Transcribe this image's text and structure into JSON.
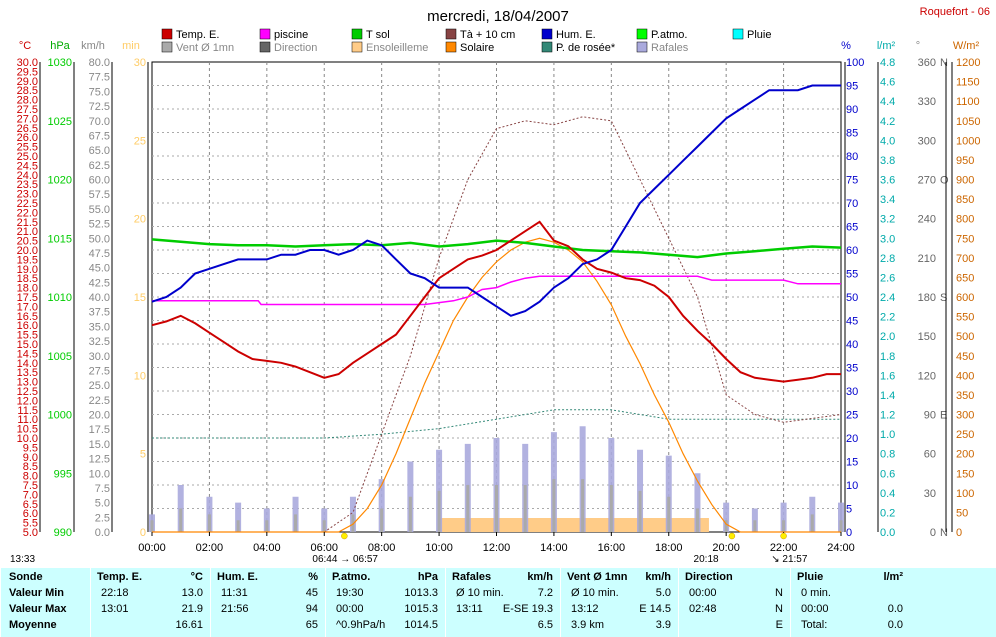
{
  "title": "mercredi, 18/04/2007",
  "station": "Roquefort - 06",
  "legend": [
    {
      "label": "Temp. E.",
      "color": "#cc0000"
    },
    {
      "label": "piscine",
      "color": "#ff00ff"
    },
    {
      "label": "T sol",
      "color": "#00cc00"
    },
    {
      "label": "Tà + 10 cm",
      "color": "#884444"
    },
    {
      "label": "Hum. E.",
      "color": "#0000cc"
    },
    {
      "label": "P.atmo.",
      "color": "#00ff00"
    },
    {
      "label": "Pluie",
      "color": "#00ffff"
    },
    {
      "label": "Vent Ø 1mn",
      "color": "#aaaaaa"
    },
    {
      "label": "Direction",
      "color": "#666666"
    },
    {
      "label": "Ensoleilleme",
      "color": "#ffcc88"
    },
    {
      "label": "Solaire",
      "color": "#ff8800"
    },
    {
      "label": "P. de rosée*",
      "color": "#338877"
    },
    {
      "label": "Rafales",
      "color": "#aaaadd"
    }
  ],
  "units": {
    "temp": "°C",
    "press": "hPa",
    "wind": "km/h",
    "min": "min",
    "hum": "%",
    "rain": "l/m²",
    "dir": "°",
    "solar": "W/m²"
  },
  "chart_data": {
    "type": "line",
    "x_ticks": [
      "00:00",
      "02:00",
      "04:00",
      "06:00",
      "08:00",
      "10:00",
      "12:00",
      "14:00",
      "16:00",
      "18:00",
      "20:00",
      "22:00",
      "24:00"
    ],
    "axes": {
      "temp": {
        "min": 5.0,
        "max": 30.0,
        "step": 0.5,
        "labels": [
          "5.0",
          "5.5",
          "6.0",
          "6.5",
          "7.0",
          "7.5",
          "8.0",
          "8.5",
          "9.0",
          "9.5",
          "10.0",
          "10.5",
          "11.0",
          "11.5",
          "12.0",
          "12.5",
          "13.0",
          "13.5",
          "14.0",
          "14.5",
          "15.0",
          "15.5",
          "16.0",
          "16.5",
          "17.0",
          "17.5",
          "18.0",
          "18.5",
          "19.0",
          "19.5",
          "20.0",
          "20.5",
          "21.0",
          "21.5",
          "22.0",
          "22.5",
          "23.0",
          "23.5",
          "24.0",
          "24.5",
          "25.0",
          "25.5",
          "26.0",
          "26.5",
          "27.0",
          "27.5",
          "28.0",
          "28.5",
          "29.0",
          "29.5",
          "30.0"
        ]
      },
      "press": {
        "labels": [
          "990",
          "995",
          "1000",
          "1005",
          "1010",
          "1015",
          "1020",
          "1025",
          "1030"
        ]
      },
      "wind": {
        "labels": [
          "0.0",
          "2.5",
          "5.0",
          "7.5",
          "10.0",
          "12.5",
          "15.0",
          "17.5",
          "20.0",
          "22.5",
          "25.0",
          "27.5",
          "30.0",
          "32.5",
          "35.0",
          "37.5",
          "40.0",
          "42.5",
          "45.0",
          "47.5",
          "50.0",
          "52.5",
          "55.0",
          "57.5",
          "60.0",
          "62.5",
          "65.0",
          "67.5",
          "70.0",
          "72.5",
          "75.0",
          "77.5",
          "80.0"
        ]
      },
      "minutes": {
        "labels": [
          "0",
          "5",
          "10",
          "15",
          "20",
          "25",
          "30"
        ]
      },
      "hum": {
        "labels": [
          "0",
          "5",
          "10",
          "15",
          "20",
          "25",
          "30",
          "35",
          "40",
          "45",
          "50",
          "55",
          "60",
          "65",
          "70",
          "75",
          "80",
          "85",
          "90",
          "95",
          "100"
        ]
      },
      "rain": {
        "labels": [
          "0.0",
          "0.2",
          "0.4",
          "0.6",
          "0.8",
          "1.0",
          "1.2",
          "1.4",
          "1.6",
          "1.8",
          "2.0",
          "2.2",
          "2.4",
          "2.6",
          "2.8",
          "3.0",
          "3.2",
          "3.4",
          "3.6",
          "3.8",
          "4.0",
          "4.2",
          "4.4",
          "4.6",
          "4.8"
        ]
      },
      "dir": {
        "labels": [
          "0",
          "30",
          "60",
          "90",
          "120",
          "150",
          "180",
          "210",
          "240",
          "270",
          "300",
          "330",
          "360"
        ],
        "compass": [
          "N",
          "",
          "",
          "E",
          "",
          "",
          "S",
          "",
          "",
          "O",
          "",
          "",
          "N"
        ]
      },
      "solar": {
        "labels": [
          "0",
          "50",
          "100",
          "150",
          "200",
          "250",
          "300",
          "350",
          "400",
          "450",
          "500",
          "550",
          "600",
          "650",
          "700",
          "750",
          "800",
          "850",
          "900",
          "950",
          "1000",
          "1050",
          "1100",
          "1150",
          "1200"
        ]
      }
    },
    "series": [
      {
        "name": "Temp. E.",
        "unit": "°C",
        "color": "#cc0000",
        "x": [
          0,
          0.5,
          1,
          1.5,
          2,
          2.5,
          3,
          3.5,
          4,
          4.5,
          5,
          5.5,
          6,
          6.5,
          7,
          7.5,
          8,
          8.5,
          9,
          9.5,
          10,
          10.5,
          11,
          11.5,
          12,
          12.5,
          13,
          13.5,
          14,
          14.5,
          15,
          15.5,
          16,
          16.5,
          17,
          17.5,
          18,
          18.5,
          19,
          19.5,
          20,
          20.5,
          21,
          21.5,
          22,
          22.5,
          23,
          23.5,
          24
        ],
        "y": [
          16.0,
          16.2,
          16.5,
          16.1,
          15.6,
          15.1,
          14.6,
          14.2,
          14.1,
          14.0,
          13.8,
          13.5,
          13.2,
          13.4,
          14.0,
          14.5,
          15.0,
          15.5,
          16.5,
          17.5,
          18.5,
          19.0,
          19.5,
          19.7,
          20.0,
          20.5,
          21.0,
          21.5,
          20.5,
          20.2,
          19.5,
          19.0,
          18.8,
          18.5,
          18.4,
          18.1,
          17.5,
          16.5,
          15.7,
          15.0,
          14.2,
          13.5,
          13.2,
          13.1,
          13.0,
          13.1,
          13.2,
          13.4,
          13.4
        ]
      },
      {
        "name": "piscine",
        "unit": "°C",
        "color": "#ff00ff",
        "x": [
          0,
          2,
          3.7,
          3.8,
          4,
          6,
          8,
          9.5,
          10.5,
          11,
          11.5,
          12,
          12.5,
          13,
          13.5,
          14,
          14.5,
          15,
          15.5,
          16,
          17,
          18,
          19,
          19.5,
          21,
          22,
          22.5,
          24
        ],
        "y": [
          17.3,
          17.3,
          17.3,
          17.1,
          17.1,
          17.1,
          17.1,
          17.1,
          17.3,
          17.5,
          17.9,
          18.0,
          18.3,
          18.5,
          18.6,
          18.6,
          18.6,
          18.6,
          18.6,
          18.6,
          18.6,
          18.6,
          18.6,
          18.4,
          18.4,
          18.4,
          18.2,
          18.2
        ]
      },
      {
        "name": "T sol",
        "unit": "°C",
        "color": "#00cc00",
        "x": [
          0,
          1,
          2,
          3,
          4,
          5,
          6,
          7,
          8,
          9,
          10,
          11,
          12,
          13,
          14,
          15,
          16,
          17,
          18,
          19,
          20,
          21,
          22,
          23,
          24
        ],
        "y": [
          1014.9,
          1014.7,
          1014.5,
          1014.4,
          1014.4,
          1014.3,
          1014.4,
          1014.5,
          1014.4,
          1014.6,
          1014.3,
          1014.5,
          1014.8,
          1014.6,
          1014.3,
          1014.0,
          1013.9,
          1013.8,
          1013.6,
          1013.4,
          1013.7,
          1013.9,
          1014.1,
          1014.3,
          1014.2
        ]
      },
      {
        "name": "Hum. E.",
        "unit": "%",
        "color": "#0000cc",
        "x": [
          0,
          0.5,
          1,
          1.5,
          2,
          2.5,
          3,
          3.5,
          4,
          4.5,
          5,
          5.5,
          6,
          6.5,
          7,
          7.5,
          8,
          8.5,
          9,
          9.5,
          10,
          10.5,
          11,
          11.5,
          12,
          12.5,
          13,
          13.5,
          14,
          14.5,
          15,
          15.5,
          16,
          16.5,
          17,
          17.5,
          18,
          18.5,
          19,
          19.5,
          20,
          20.5,
          21,
          21.5,
          22,
          22.5,
          23,
          23.5,
          24
        ],
        "y": [
          49,
          50,
          52,
          55,
          56,
          57,
          58,
          58,
          58,
          59,
          59,
          60,
          60,
          59,
          60,
          62,
          61,
          58,
          55,
          54,
          52,
          52,
          52,
          50,
          48,
          46,
          47,
          49,
          52,
          54,
          57,
          58,
          60,
          65,
          70,
          73,
          76,
          79,
          82,
          85,
          88,
          90,
          92,
          94,
          94,
          94,
          95,
          95,
          95
        ]
      },
      {
        "name": "Tà + 10 cm",
        "unit": "W/m²",
        "color": "#884444",
        "x": [
          0,
          1,
          2,
          3,
          4,
          5,
          6,
          7,
          8,
          9,
          10,
          11,
          12,
          13,
          14,
          15,
          16,
          17,
          18,
          19,
          20,
          21,
          22,
          23,
          24
        ],
        "y": [
          0,
          0,
          0,
          0,
          0,
          0,
          0,
          50,
          250,
          450,
          700,
          900,
          1030,
          1050,
          1040,
          1060,
          1050,
          900,
          750,
          600,
          350,
          300,
          280,
          290,
          300
        ]
      },
      {
        "name": "Solaire",
        "unit": "W/m²",
        "color": "#ff8800",
        "x": [
          0,
          6.5,
          7,
          7.5,
          8,
          8.5,
          9,
          9.5,
          10,
          10.5,
          11,
          11.5,
          12,
          12.5,
          13,
          13.5,
          14,
          14.5,
          15,
          15.5,
          16,
          16.5,
          17,
          17.5,
          18,
          18.5,
          19,
          19.5,
          20,
          20.5,
          24
        ],
        "y": [
          0,
          0,
          20,
          60,
          120,
          200,
          290,
          380,
          460,
          540,
          600,
          650,
          690,
          720,
          740,
          750,
          740,
          720,
          690,
          640,
          580,
          500,
          430,
          350,
          280,
          200,
          130,
          70,
          20,
          0,
          0
        ]
      },
      {
        "name": "Rafales",
        "unit": "km/h",
        "color": "#aaaadd",
        "x": [
          0,
          1,
          2,
          3,
          4,
          5,
          6,
          7,
          8,
          9,
          10,
          11,
          12,
          13,
          14,
          15,
          16,
          17,
          18,
          19,
          20,
          21,
          22,
          23,
          24
        ],
        "y": [
          3,
          8,
          6,
          5,
          4,
          6,
          4,
          6,
          9,
          12,
          14,
          15,
          16,
          15,
          17,
          18,
          16,
          14,
          13,
          10,
          5,
          4,
          5,
          6,
          5
        ]
      },
      {
        "name": "Vent Ø 1mn",
        "unit": "km/h",
        "color": "#aaaaaa",
        "x": [
          0,
          1,
          2,
          3,
          4,
          5,
          6,
          7,
          8,
          9,
          10,
          11,
          12,
          13,
          14,
          15,
          16,
          17,
          18,
          19,
          20,
          21,
          22,
          23,
          24
        ],
        "y": [
          2,
          4,
          3,
          2,
          2,
          3,
          2,
          3,
          4,
          6,
          7,
          8,
          8,
          8,
          9,
          9,
          8,
          7,
          6,
          4,
          2,
          2,
          2,
          3,
          2
        ]
      },
      {
        "name": "P. de rosée*",
        "unit": "°C",
        "color": "#338877",
        "x": [
          0,
          2,
          4,
          6,
          8,
          10,
          12,
          14,
          16,
          18,
          20,
          22,
          24
        ],
        "y": [
          10.0,
          10.0,
          10.0,
          10.0,
          10.2,
          10.5,
          11.0,
          11.5,
          11.5,
          11.0,
          11.0,
          11.0,
          11.0
        ]
      }
    ],
    "sunrise_label": "06:44 → 06:57",
    "sunset_label": "20:18",
    "sunset2_label": "↘ 21:57",
    "left_time": "13:33"
  },
  "summary": {
    "row_labels": [
      "Sonde",
      "Valeur Min",
      "Valeur Max",
      "Moyenne"
    ],
    "sections": [
      {
        "title": "Temp. E.",
        "unit": "°C",
        "rows": [
          [
            "22:18",
            "13.0"
          ],
          [
            "13:01",
            "21.9"
          ],
          [
            "",
            "16.61"
          ]
        ]
      },
      {
        "title": "Hum. E.",
        "unit": "%",
        "rows": [
          [
            "11:31",
            "45"
          ],
          [
            "21:56",
            "94"
          ],
          [
            "",
            "65"
          ]
        ]
      },
      {
        "title": "P.atmo.",
        "unit": "hPa",
        "rows": [
          [
            "19:30",
            "1013.3"
          ],
          [
            "00:00",
            "1015.3"
          ],
          [
            "^0.9hPa/h",
            "1014.5"
          ]
        ]
      },
      {
        "title": "Rafales",
        "unit": "km/h",
        "rows": [
          [
            "Ø 10 min.",
            "7.2"
          ],
          [
            "13:11",
            "E-SE 19.3"
          ],
          [
            "",
            "6.5"
          ]
        ]
      },
      {
        "title": "Vent Ø 1mn",
        "unit": "km/h",
        "rows": [
          [
            "Ø 10 min.",
            "5.0"
          ],
          [
            "13:12",
            "E 14.5"
          ],
          [
            "3.9 km",
            "3.9"
          ]
        ]
      },
      {
        "title": "Direction",
        "unit": "",
        "rows": [
          [
            "00:00",
            "N"
          ],
          [
            "02:48",
            "N"
          ],
          [
            "",
            "E"
          ]
        ]
      },
      {
        "title": "Pluie",
        "unit": "l/m²",
        "rows": [
          [
            "0 min.",
            ""
          ],
          [
            "00:00",
            "0.0"
          ],
          [
            "Total:",
            "0.0"
          ]
        ]
      }
    ]
  }
}
